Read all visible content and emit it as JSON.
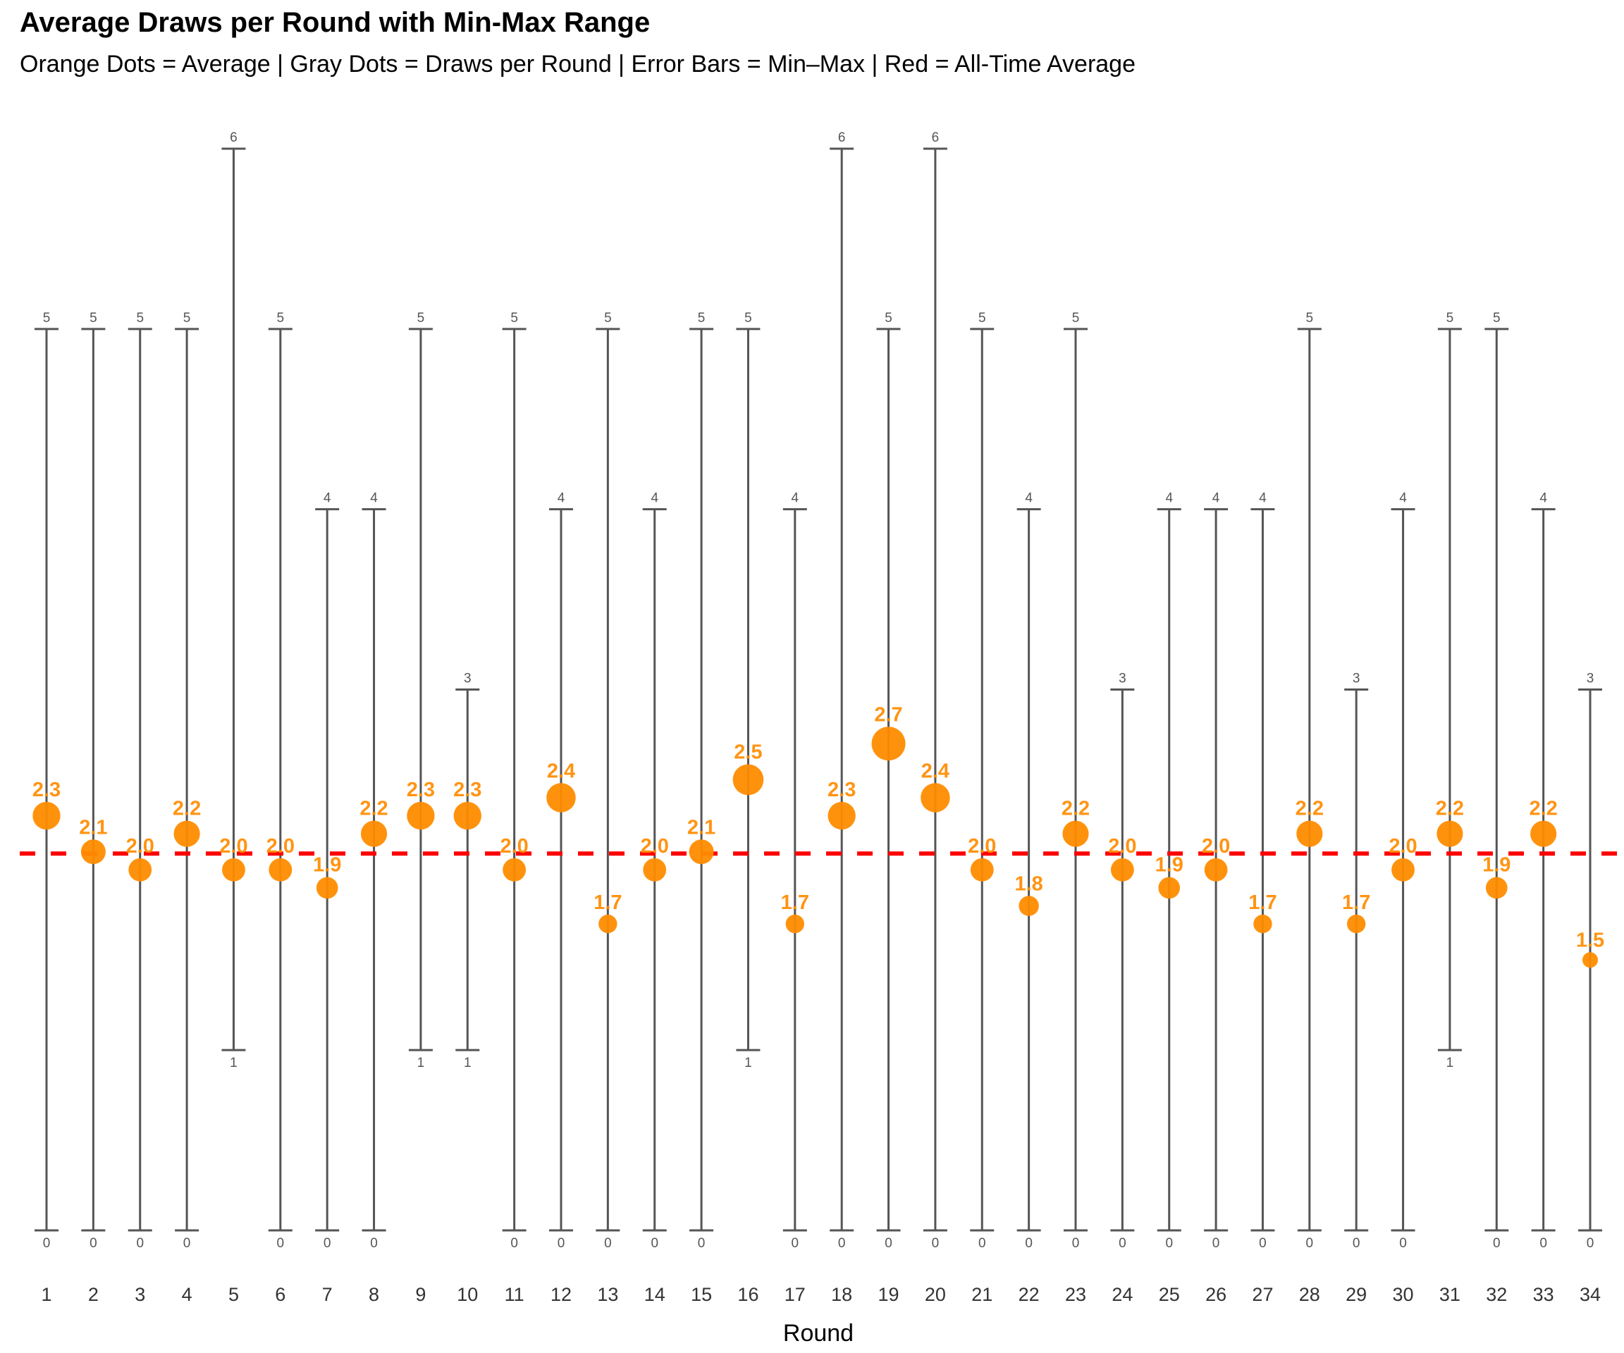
{
  "chart_data": {
    "type": "scatter",
    "title": "Average Draws per Round with Min-Max Range",
    "subtitle": "Orange Dots = Average | Gray Dots = Draws per Round | Error Bars = Min–Max | Red = All-Time Average",
    "xlabel": "Round",
    "ylabel": "",
    "ylim": [
      0,
      6
    ],
    "grid": false,
    "legend": "none",
    "categories": [
      "1",
      "2",
      "3",
      "4",
      "5",
      "6",
      "7",
      "8",
      "9",
      "10",
      "11",
      "12",
      "13",
      "14",
      "15",
      "16",
      "17",
      "18",
      "19",
      "20",
      "21",
      "22",
      "23",
      "24",
      "25",
      "26",
      "27",
      "28",
      "29",
      "30",
      "31",
      "32",
      "33",
      "34"
    ],
    "series": [
      {
        "name": "Average",
        "values": [
          2.3,
          2.1,
          2.0,
          2.2,
          2.0,
          2.0,
          1.9,
          2.2,
          2.3,
          2.3,
          2.0,
          2.4,
          1.7,
          2.0,
          2.1,
          2.5,
          1.7,
          2.3,
          2.7,
          2.4,
          2.0,
          1.8,
          2.2,
          2.0,
          1.9,
          2.0,
          1.7,
          2.2,
          1.7,
          2.0,
          2.2,
          1.9,
          2.2,
          1.5
        ],
        "color": "#ff8c00"
      },
      {
        "name": "Min",
        "values": [
          0,
          0,
          0,
          0,
          1,
          0,
          0,
          0,
          1,
          1,
          0,
          0,
          0,
          0,
          0,
          1,
          0,
          0,
          0,
          0,
          0,
          0,
          0,
          0,
          0,
          0,
          0,
          0,
          0,
          0,
          1,
          0,
          0,
          0
        ],
        "color": "#555555"
      },
      {
        "name": "Max",
        "values": [
          5,
          5,
          5,
          5,
          6,
          5,
          4,
          4,
          5,
          3,
          5,
          4,
          5,
          4,
          5,
          5,
          4,
          6,
          5,
          6,
          5,
          4,
          5,
          3,
          4,
          4,
          4,
          5,
          3,
          4,
          5,
          5,
          4,
          3
        ],
        "color": "#555555"
      }
    ],
    "all_time_average": 2.09,
    "all_time_average_color": "#ff0000"
  }
}
